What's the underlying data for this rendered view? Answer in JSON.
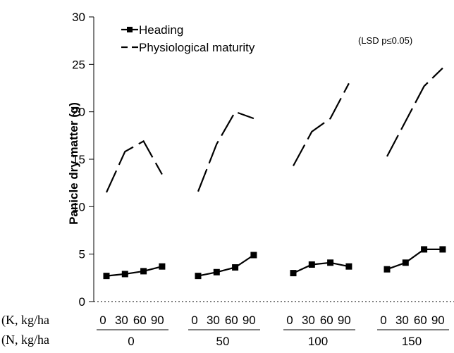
{
  "chart_data": {
    "type": "line",
    "ylabel": "Panicle dry matter (g)",
    "ylim": [
      0,
      30
    ],
    "yticks": [
      "0",
      "5",
      "10",
      "15",
      "20",
      "25",
      "30"
    ],
    "annotation": "(LSD p≤0.05)",
    "x_row_labels": {
      "k": "(K, kg/ha",
      "n": "(N, kg/ha"
    },
    "k_levels": [
      "0",
      "30",
      "60",
      "90"
    ],
    "groups": [
      {
        "n_label": "0"
      },
      {
        "n_label": "50"
      },
      {
        "n_label": "100"
      },
      {
        "n_label": "150"
      }
    ],
    "series": [
      {
        "name": "Heading",
        "style": "solid-square",
        "color": "#000000",
        "values": [
          [
            2.7,
            2.9,
            3.2,
            3.7
          ],
          [
            2.7,
            3.1,
            3.6,
            4.9
          ],
          [
            3.0,
            3.9,
            4.1,
            3.7
          ],
          [
            3.4,
            4.1,
            5.5,
            5.5
          ]
        ]
      },
      {
        "name": "Physiological maturity",
        "style": "dashed",
        "color": "#000000",
        "values": [
          [
            11.5,
            15.8,
            16.9,
            13.4
          ],
          [
            11.6,
            16.6,
            20.0,
            19.3
          ],
          [
            14.3,
            17.9,
            19.3,
            23.0
          ],
          [
            15.3,
            19.0,
            22.7,
            24.6
          ]
        ]
      }
    ]
  }
}
